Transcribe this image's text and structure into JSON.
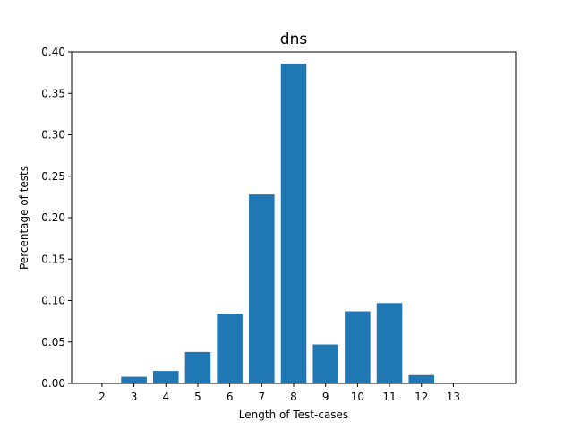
{
  "chart_data": {
    "type": "bar",
    "title": "dns",
    "xlabel": "Length of Test-cases",
    "ylabel": "Percentage of tests",
    "categories": [
      "2",
      "3",
      "4",
      "5",
      "6",
      "7",
      "8",
      "9",
      "10",
      "11",
      "12",
      "13"
    ],
    "x": [
      2,
      3,
      4,
      5,
      6,
      7,
      8,
      9,
      10,
      11,
      12,
      13
    ],
    "values": [
      0.0,
      0.008,
      0.015,
      0.038,
      0.084,
      0.228,
      0.386,
      0.047,
      0.087,
      0.097,
      0.01,
      0.0
    ],
    "xlim": [
      1.05,
      14.95
    ],
    "ylim": [
      0,
      0.4
    ],
    "yticks": [
      0.0,
      0.05,
      0.1,
      0.15,
      0.2,
      0.25,
      0.3,
      0.35,
      0.4
    ],
    "ytick_labels": [
      "0.00",
      "0.05",
      "0.10",
      "0.15",
      "0.20",
      "0.25",
      "0.30",
      "0.35",
      "0.40"
    ],
    "bar_color": "#1f77b4",
    "grid": false,
    "legend": "none"
  }
}
